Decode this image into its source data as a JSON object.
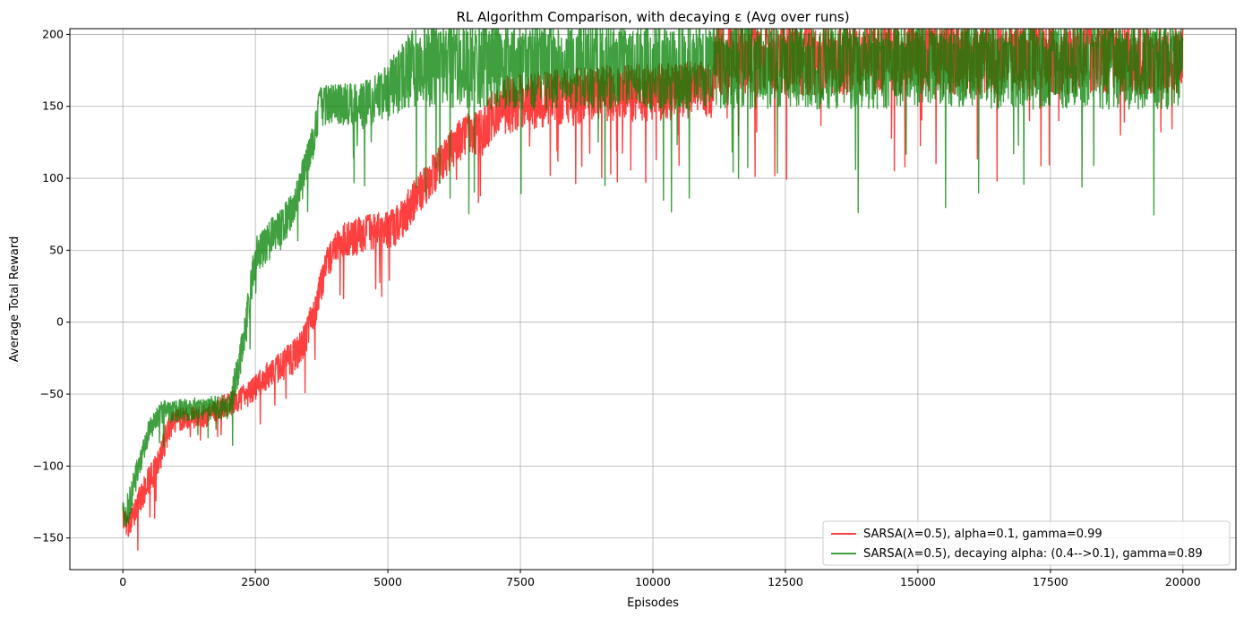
{
  "chart_data": {
    "type": "line",
    "title": "RL Algorithm Comparison, with decaying ε (Avg over runs)",
    "xlabel": "Episodes",
    "ylabel": "Average Total Reward",
    "xlim": [
      -1000,
      21000
    ],
    "ylim": [
      -172,
      204
    ],
    "xticks": [
      0,
      2500,
      5000,
      7500,
      10000,
      12500,
      15000,
      17500,
      20000
    ],
    "xtick_labels": [
      "0",
      "2500",
      "5000",
      "7500",
      "10000",
      "12500",
      "15000",
      "17500",
      "20000"
    ],
    "yticks": [
      -150,
      -100,
      -50,
      0,
      50,
      100,
      150,
      200
    ],
    "ytick_labels": [
      "−150",
      "−100",
      "−50",
      "0",
      "50",
      "100",
      "150",
      "200"
    ],
    "grid": true,
    "legend_position": "bottom-right",
    "series": [
      {
        "name": "SARSA(λ=0.5), alpha=0.1, gamma=0.99",
        "color": "#ff0000",
        "opacity": 0.75,
        "x": [
          0,
          100,
          300,
          500,
          700,
          850,
          1000,
          1500,
          2000,
          2300,
          2500,
          2800,
          3200,
          3400,
          3600,
          3800,
          4000,
          4200,
          4500,
          5000,
          5200,
          5500,
          5800,
          6000,
          6300,
          6500,
          6800,
          7100,
          7500,
          8000,
          9000,
          10000,
          11100,
          11200,
          12500,
          15000,
          17500,
          20000
        ],
        "mean": [
          -137,
          -143,
          -125,
          -110,
          -95,
          -75,
          -68,
          -66,
          -57,
          -52,
          -45,
          -35,
          -25,
          -15,
          5,
          35,
          52,
          58,
          60,
          63,
          68,
          85,
          100,
          110,
          125,
          130,
          132,
          150,
          153,
          155,
          158,
          160,
          162,
          183,
          183,
          183,
          183,
          183
        ],
        "spread": [
          10,
          8,
          10,
          10,
          10,
          10,
          8,
          8,
          8,
          9,
          9,
          10,
          12,
          12,
          12,
          12,
          12,
          12,
          14,
          14,
          14,
          14,
          14,
          14,
          14,
          15,
          16,
          20,
          20,
          20,
          20,
          20,
          20,
          25,
          25,
          25,
          25,
          25
        ]
      },
      {
        "name": "SARSA(λ=0.5), decaying alpha: (0.4-->0.1), gamma=0.89",
        "color": "#008000",
        "opacity": 0.75,
        "x": [
          0,
          100,
          300,
          500,
          700,
          850,
          1000,
          1500,
          2000,
          2100,
          2300,
          2500,
          2700,
          3000,
          3200,
          3400,
          3600,
          3700,
          4000,
          4500,
          5000,
          5500,
          7000,
          8000,
          10000,
          11200,
          12500,
          15000,
          17500,
          20000
        ],
        "mean": [
          -135,
          -130,
          -100,
          -75,
          -63,
          -62,
          -62,
          -60,
          -60,
          -45,
          -10,
          45,
          55,
          65,
          80,
          100,
          125,
          150,
          152,
          150,
          160,
          178,
          178,
          178,
          178,
          178,
          178,
          178,
          178,
          178
        ],
        "spread": [
          10,
          12,
          10,
          8,
          8,
          8,
          8,
          8,
          10,
          12,
          14,
          14,
          14,
          14,
          14,
          14,
          14,
          14,
          14,
          16,
          20,
          28,
          30,
          30,
          30,
          30,
          30,
          30,
          30,
          30
        ]
      }
    ]
  }
}
